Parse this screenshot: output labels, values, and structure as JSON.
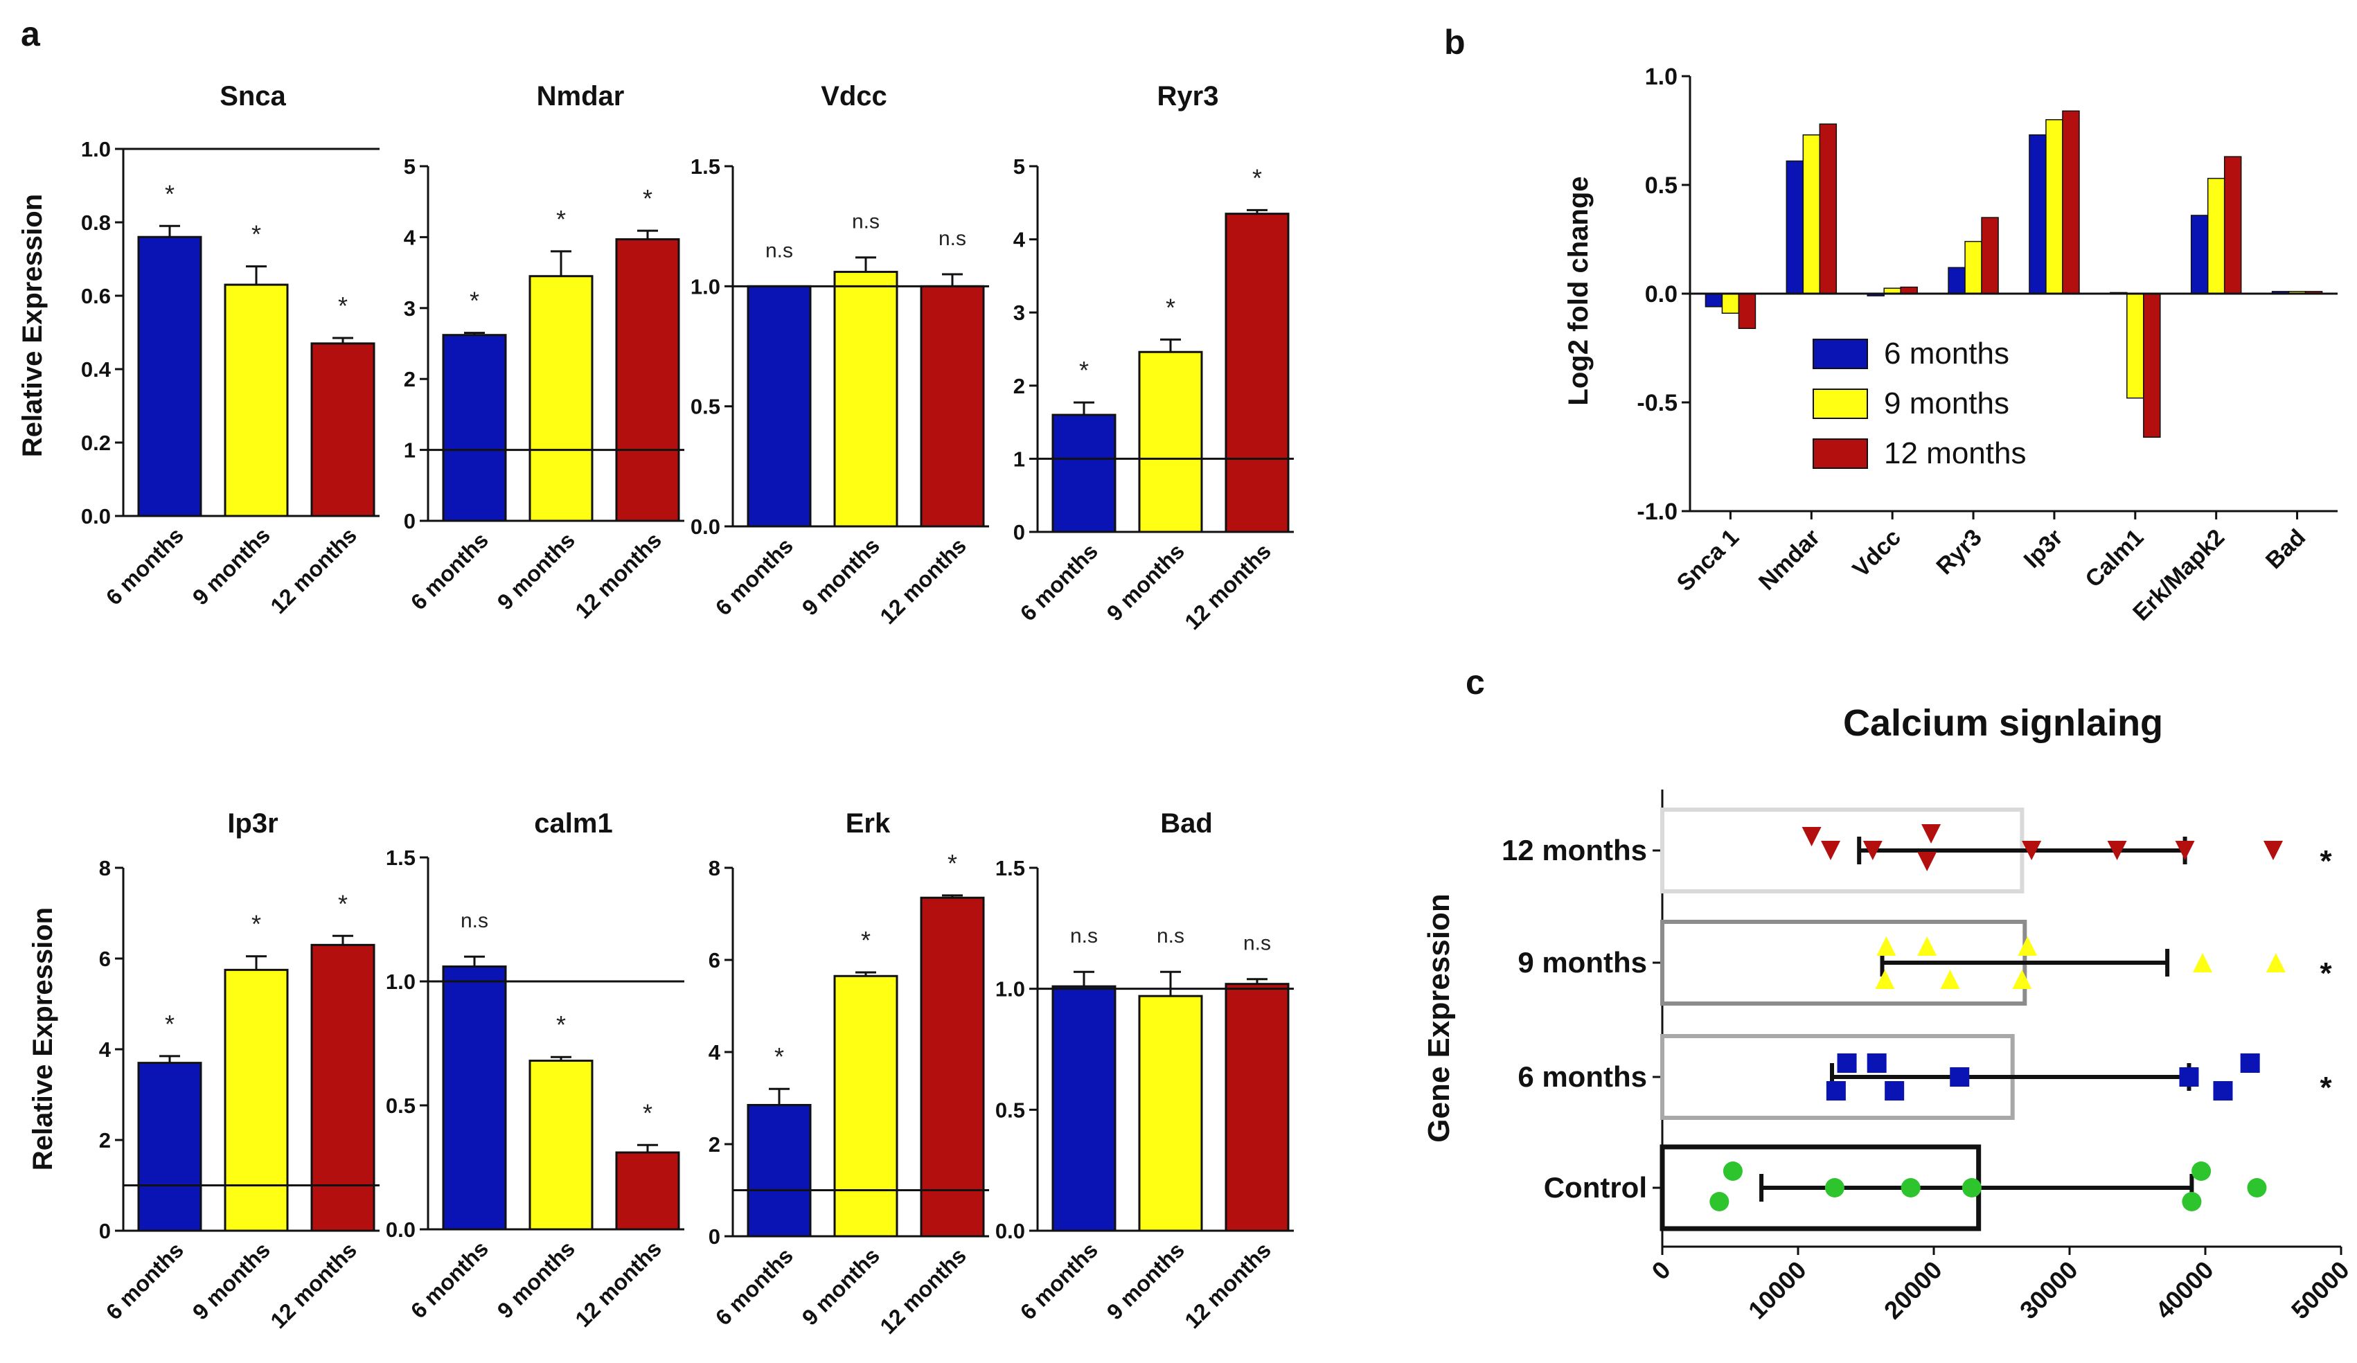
{
  "colors": {
    "m6": "#0a14b4",
    "m9": "#ffff14",
    "m12": "#b40f0f",
    "control": "#2ec42e",
    "ctrl_frame": "#111111",
    "m6_frame": "#a8a8a8",
    "m9_frame": "#8c8c8c",
    "m12_frame": "#d9d9d9"
  },
  "panel_labels": {
    "a": "a",
    "b": "b",
    "c": "c"
  },
  "panel_a": {
    "ylabel": "Relative Expression",
    "categories": [
      "6 months",
      "9 months",
      "12 months"
    ],
    "charts": [
      {
        "title": "Snca",
        "yticks": [
          "0.0",
          "0.2",
          "0.4",
          "0.6",
          "0.8",
          "1.0"
        ],
        "ylim": [
          0,
          1.0
        ],
        "ref": 1.0,
        "values": [
          0.76,
          0.63,
          0.47
        ],
        "errors": [
          0.03,
          0.05,
          0.015
        ],
        "sig": [
          "*",
          "*",
          "*"
        ]
      },
      {
        "title": "Nmdar",
        "yticks": [
          "0",
          "1",
          "2",
          "3",
          "4",
          "5"
        ],
        "ylim": [
          0,
          5
        ],
        "ref": 1,
        "values": [
          2.62,
          3.45,
          3.97
        ],
        "errors": [
          0.03,
          0.35,
          0.12
        ],
        "sig": [
          "*",
          "*",
          "*"
        ]
      },
      {
        "title": "Vdcc",
        "yticks": [
          "0.0",
          "0.5",
          "1.0",
          "1.5"
        ],
        "ylim": [
          0,
          1.5
        ],
        "ref": 1.0,
        "values": [
          1.0,
          1.06,
          1.0
        ],
        "errors": [
          0.0,
          0.06,
          0.05
        ],
        "sig": [
          "n.s",
          "n.s",
          "n.s"
        ]
      },
      {
        "title": "Ryr3",
        "yticks": [
          "0",
          "1",
          "2",
          "3",
          "4",
          "5"
        ],
        "ylim": [
          0,
          5
        ],
        "ref": 1,
        "values": [
          1.6,
          2.46,
          4.35
        ],
        "errors": [
          0.17,
          0.17,
          0.05
        ],
        "sig": [
          "*",
          "*",
          "*"
        ]
      },
      {
        "title": "Ip3r",
        "yticks": [
          "0",
          "2",
          "4",
          "6",
          "8"
        ],
        "ylim": [
          0,
          8
        ],
        "ref": 1,
        "values": [
          3.7,
          5.75,
          6.3
        ],
        "errors": [
          0.15,
          0.3,
          0.2
        ],
        "sig": [
          "*",
          "*",
          "*"
        ]
      },
      {
        "title": "calm1",
        "yticks": [
          "0.0",
          "0.5",
          "1.0",
          "1.5"
        ],
        "ylim": [
          0,
          1.5
        ],
        "ref": 1.0,
        "values": [
          1.06,
          0.68,
          0.31
        ],
        "errors": [
          0.04,
          0.015,
          0.03
        ],
        "sig": [
          "n.s",
          "*",
          "*"
        ]
      },
      {
        "title": "Erk",
        "yticks": [
          "0",
          "2",
          "4",
          "6",
          "8"
        ],
        "ylim": [
          0,
          8
        ],
        "ref": 1,
        "values": [
          2.85,
          5.65,
          7.35
        ],
        "errors": [
          0.35,
          0.08,
          0.05
        ],
        "sig": [
          "*",
          "*",
          "*"
        ]
      },
      {
        "title": "Bad",
        "yticks": [
          "0.0",
          "0.5",
          "1.0",
          "1.5"
        ],
        "ylim": [
          0,
          1.5
        ],
        "ref": 1.0,
        "values": [
          1.01,
          0.97,
          1.02
        ],
        "errors": [
          0.06,
          0.1,
          0.02
        ],
        "sig": [
          "n.s",
          "n.s",
          "n.s"
        ]
      }
    ]
  },
  "chart_data": [
    {
      "type": "bar",
      "panel": "b",
      "title": "",
      "xlabel": "",
      "ylabel": "Log2 fold change",
      "ylim": [
        -1.0,
        1.0
      ],
      "yticks": [
        "1.0",
        "0.5",
        "0.0",
        "-0.5",
        "-1.0"
      ],
      "categories": [
        "Snca 1",
        "Nmdar",
        "Vdcc",
        "Ryr3",
        "Ip3r",
        "Calm1",
        "Erk/Mapk2",
        "Bad"
      ],
      "legend_position": "center",
      "series": [
        {
          "name": "6 months",
          "values": [
            -0.06,
            0.61,
            -0.01,
            0.12,
            0.73,
            0.005,
            0.36,
            0.01
          ]
        },
        {
          "name": "9 months",
          "values": [
            -0.09,
            0.73,
            0.025,
            0.24,
            0.8,
            -0.48,
            0.53,
            0.01
          ]
        },
        {
          "name": "12 months",
          "values": [
            -0.16,
            0.78,
            0.03,
            0.35,
            0.84,
            -0.66,
            0.63,
            0.01
          ]
        }
      ]
    },
    {
      "type": "scatter",
      "panel": "c",
      "title": "Calcium signlaing",
      "ylabel": "Gene Expression",
      "xlim": [
        0,
        50000
      ],
      "xticks": [
        "0",
        "10000",
        "20000",
        "30000",
        "40000",
        "50000"
      ],
      "groups": [
        {
          "name": "12 months",
          "marker": "triangle-down",
          "mean": 26500,
          "err_low": 14500,
          "err_high": 38500,
          "sig": "*",
          "points": [
            [
              11000,
              0.1
            ],
            [
              12400,
              0.0
            ],
            [
              15500,
              0.0
            ],
            [
              19800,
              0.12
            ],
            [
              19500,
              -0.08
            ],
            [
              27200,
              0.0
            ],
            [
              33500,
              0.0
            ],
            [
              38500,
              0.0
            ],
            [
              45000,
              0.0
            ]
          ]
        },
        {
          "name": "9 months",
          "marker": "triangle-up",
          "mean": 26700,
          "err_low": 16200,
          "err_high": 37200,
          "sig": "*",
          "points": [
            [
              16500,
              0.12
            ],
            [
              16400,
              -0.12
            ],
            [
              19500,
              0.12
            ],
            [
              21200,
              -0.12
            ],
            [
              26500,
              -0.12
            ],
            [
              26900,
              0.12
            ],
            [
              39800,
              0.0
            ],
            [
              45200,
              0.0
            ]
          ]
        },
        {
          "name": "6 months",
          "marker": "square",
          "mean": 25800,
          "err_low": 12500,
          "err_high": 38800,
          "sig": "*",
          "points": [
            [
              13600,
              0.1
            ],
            [
              12800,
              -0.1
            ],
            [
              15800,
              0.1
            ],
            [
              17100,
              -0.1
            ],
            [
              21900,
              0.0
            ],
            [
              38800,
              0.0
            ],
            [
              41300,
              -0.1
            ],
            [
              43300,
              0.1
            ]
          ]
        },
        {
          "name": "Control",
          "marker": "circle",
          "mean": 23300,
          "err_low": 7300,
          "err_high": 39000,
          "sig": "",
          "points": [
            [
              4200,
              -0.1
            ],
            [
              5200,
              0.12
            ],
            [
              12700,
              0.0
            ],
            [
              18300,
              0.0
            ],
            [
              22800,
              0.0
            ],
            [
              39000,
              -0.1
            ],
            [
              39700,
              0.12
            ],
            [
              43800,
              0.0
            ]
          ]
        }
      ]
    }
  ]
}
